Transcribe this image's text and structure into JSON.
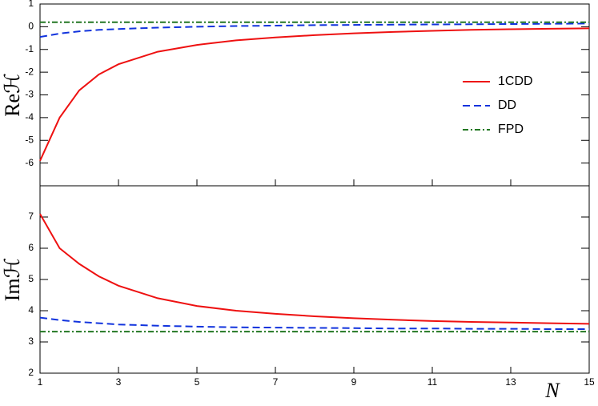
{
  "chart_data": [
    {
      "type": "line",
      "ylabel": "Reℋ",
      "x": [
        1,
        1.5,
        2,
        2.5,
        3,
        4,
        5,
        6,
        7,
        8,
        9,
        10,
        11,
        12,
        13,
        14,
        15
      ],
      "series": [
        {
          "name": "1CDD",
          "color": "#ee1111",
          "dash": "solid",
          "values": [
            -5.9,
            -4.0,
            -2.8,
            -2.1,
            -1.65,
            -1.1,
            -0.8,
            -0.6,
            -0.47,
            -0.37,
            -0.29,
            -0.23,
            -0.18,
            -0.14,
            -0.11,
            -0.09,
            -0.07
          ]
        },
        {
          "name": "DD",
          "color": "#1133dd",
          "dash": "dashed",
          "values": [
            -0.45,
            -0.3,
            -0.2,
            -0.14,
            -0.1,
            -0.04,
            0.0,
            0.03,
            0.05,
            0.07,
            0.08,
            0.09,
            0.1,
            0.11,
            0.12,
            0.13,
            0.14
          ]
        },
        {
          "name": "FPD",
          "color": "#227722",
          "dash": "dashdot",
          "values": [
            0.2,
            0.2,
            0.2,
            0.2,
            0.2,
            0.2,
            0.2,
            0.2,
            0.2,
            0.2,
            0.2,
            0.2,
            0.2,
            0.2,
            0.2,
            0.2,
            0.2
          ]
        }
      ],
      "xlim": [
        1,
        15
      ],
      "ylim": [
        -7,
        1
      ],
      "yticks": [
        -6,
        -5,
        -4,
        -3,
        -2,
        -1,
        0,
        1
      ],
      "legend": "right"
    },
    {
      "type": "line",
      "ylabel": "Imℋ",
      "xlabel": "N",
      "x": [
        1,
        1.5,
        2,
        2.5,
        3,
        4,
        5,
        6,
        7,
        8,
        9,
        10,
        11,
        12,
        13,
        14,
        15
      ],
      "series": [
        {
          "name": "1CDD",
          "color": "#ee1111",
          "dash": "solid",
          "values": [
            7.1,
            6.0,
            5.5,
            5.1,
            4.8,
            4.4,
            4.15,
            4.0,
            3.9,
            3.82,
            3.76,
            3.71,
            3.67,
            3.64,
            3.62,
            3.6,
            3.58
          ]
        },
        {
          "name": "DD",
          "color": "#1133dd",
          "dash": "dashed",
          "values": [
            3.78,
            3.7,
            3.64,
            3.6,
            3.56,
            3.52,
            3.49,
            3.47,
            3.46,
            3.45,
            3.44,
            3.43,
            3.43,
            3.42,
            3.42,
            3.41,
            3.41
          ]
        },
        {
          "name": "FPD",
          "color": "#227722",
          "dash": "dashdot",
          "values": [
            3.33,
            3.33,
            3.33,
            3.33,
            3.33,
            3.33,
            3.33,
            3.33,
            3.33,
            3.33,
            3.33,
            3.33,
            3.33,
            3.33,
            3.33,
            3.33,
            3.33
          ]
        }
      ],
      "xlim": [
        1,
        15
      ],
      "ylim": [
        2,
        8
      ],
      "xticks": [
        1,
        3,
        5,
        7,
        9,
        11,
        13,
        15
      ],
      "yticks": [
        2,
        3,
        4,
        5,
        6,
        7
      ]
    }
  ]
}
